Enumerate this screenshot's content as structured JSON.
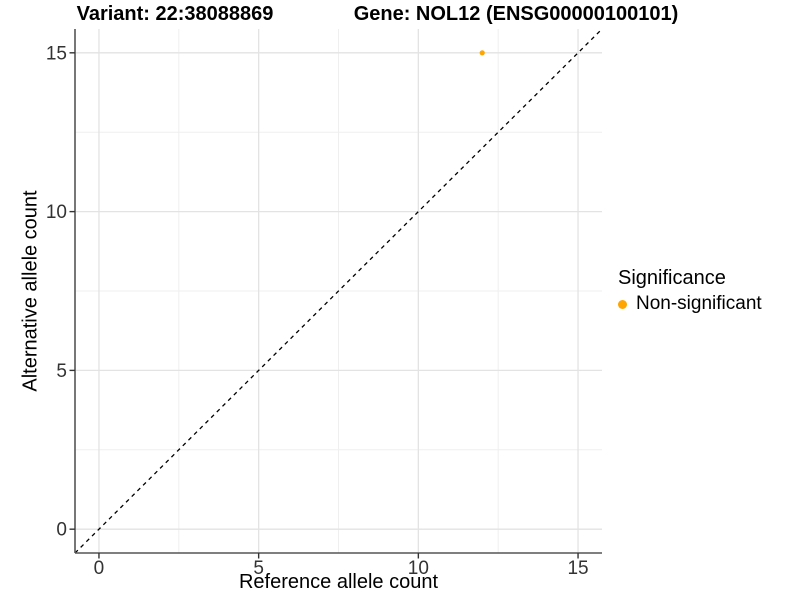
{
  "chart_data": {
    "type": "scatter",
    "titles": [
      "Variant: 22:38088869",
      "Gene: NOL12 (ENSG00000100101)"
    ],
    "xlabel": "Reference allele count",
    "ylabel": "Alternative allele count",
    "xlim": [
      -0.75,
      15.75
    ],
    "ylim": [
      -0.75,
      15.75
    ],
    "x_ticks": [
      0,
      5,
      10,
      15
    ],
    "y_ticks": [
      0,
      5,
      10,
      15
    ],
    "grid": {
      "major": true,
      "minor": true
    },
    "reference_line": {
      "type": "identity y=x",
      "style": "dashed",
      "color": "#000000"
    },
    "legend": {
      "title": "Significance",
      "position": "right",
      "entries": [
        {
          "label": "Non-significant",
          "color": "#FFA500"
        }
      ]
    },
    "series": [
      {
        "name": "Non-significant",
        "color": "#FFA500",
        "points": [
          [
            12,
            15
          ]
        ]
      }
    ],
    "colors": {
      "grid_major": "#E3E3E3",
      "grid_minor": "#EFEFEF",
      "axis_line": "#555555",
      "tick_mark": "#333333",
      "tick_text": "#333333",
      "background": "#FFFFFF"
    }
  }
}
